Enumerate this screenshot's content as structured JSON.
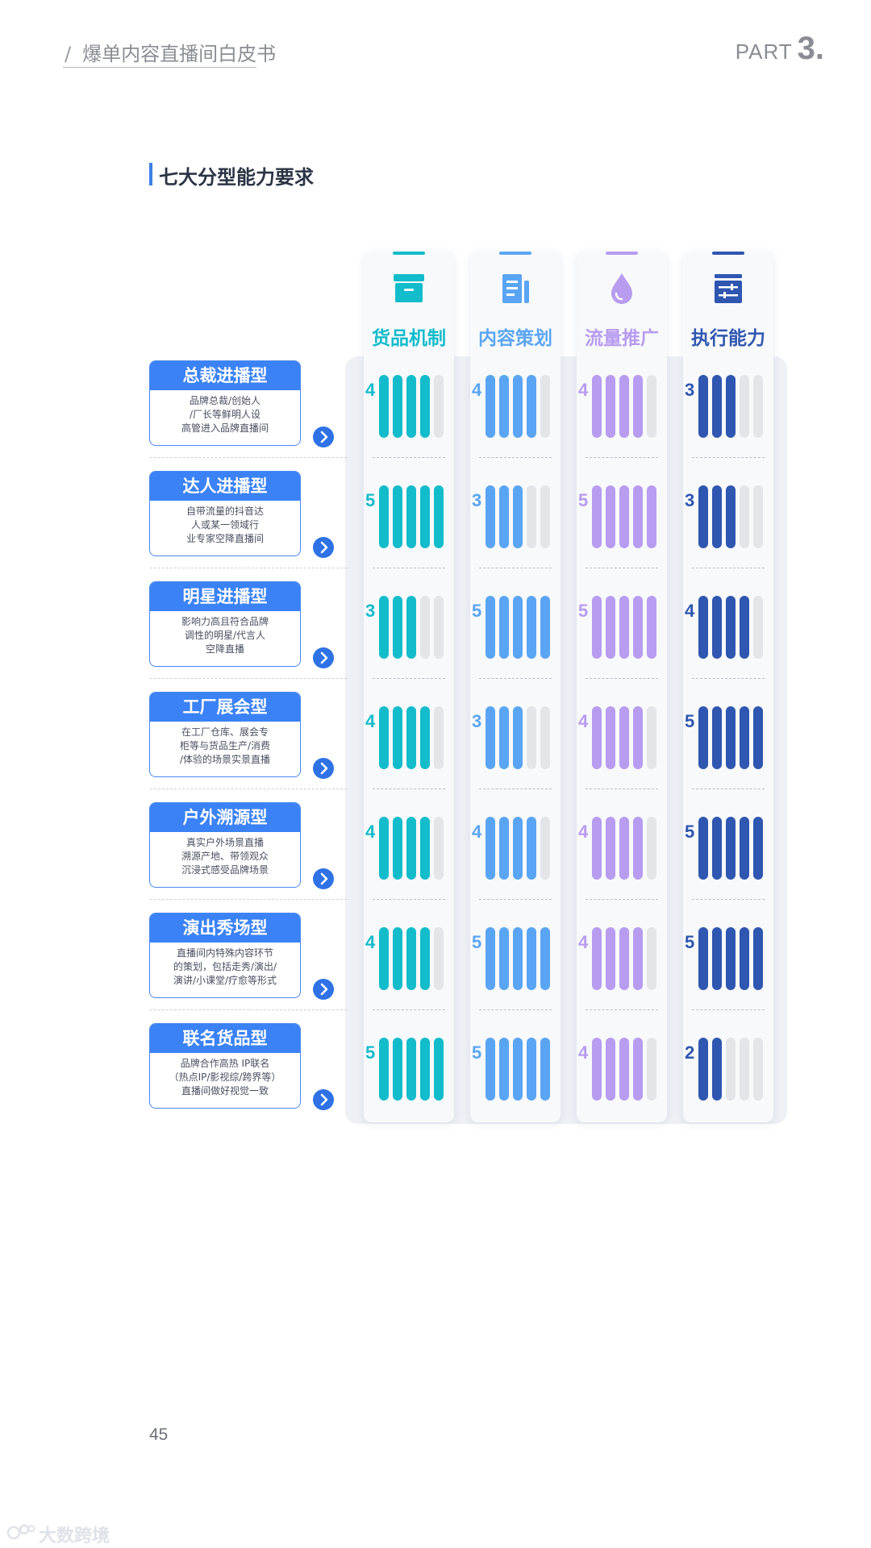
{
  "header": {
    "slash": "/",
    "doc_title": "爆单内容直播间白皮书",
    "part_label": "PART",
    "part_number": "3."
  },
  "section": {
    "title": "七大分型能力要求"
  },
  "columns": [
    {
      "title": "货品机制",
      "color": "#13bccb",
      "icon": "box-icon"
    },
    {
      "title": "内容策划",
      "color": "#5aa5f3",
      "icon": "document-icon"
    },
    {
      "title": "流量推广",
      "color": "#b79cf0",
      "icon": "droplet-icon"
    },
    {
      "title": "执行能力",
      "color": "#2f56b0",
      "icon": "sliders-icon"
    }
  ],
  "rows": [
    {
      "title": "总裁进播型",
      "desc": [
        "品牌总裁/创始人",
        "/厂长等鲜明人设",
        "高管进入品牌直播间"
      ],
      "scores": [
        4,
        4,
        4,
        3
      ]
    },
    {
      "title": "达人进播型",
      "desc": [
        "自带流量的抖音达",
        "人或某一领域行",
        "业专家空降直播间"
      ],
      "scores": [
        5,
        3,
        5,
        3
      ]
    },
    {
      "title": "明星进播型",
      "desc": [
        "影响力高且符合品牌",
        "调性的明星/代言人",
        "空降直播"
      ],
      "scores": [
        3,
        5,
        5,
        4
      ]
    },
    {
      "title": "工厂展会型",
      "desc": [
        "在工厂仓库、展会专",
        "柜等与货品生产/消费",
        "/体验的场景实景直播"
      ],
      "scores": [
        4,
        3,
        4,
        5
      ]
    },
    {
      "title": "户外溯源型",
      "desc": [
        "真实户外场景直播",
        "溯源产地、带领观众",
        "沉浸式感受品牌场景"
      ],
      "scores": [
        4,
        4,
        4,
        5
      ]
    },
    {
      "title": "演出秀场型",
      "desc": [
        "直播间内特殊内容环节",
        "的策划，包括走秀/演出/",
        "演讲/小课堂/疗愈等形式"
      ],
      "scores": [
        4,
        5,
        4,
        5
      ]
    },
    {
      "title": "联名货品型",
      "desc": [
        "品牌合作高热 IP联名",
        "（热点IP/影视综/跨界等）",
        "直播间做好视觉一致"
      ],
      "scores": [
        5,
        5,
        4,
        2
      ]
    }
  ],
  "max_score": 5,
  "empty_bar_color": "#e3e5e9",
  "page_number": "45",
  "watermark": "大数跨境"
}
